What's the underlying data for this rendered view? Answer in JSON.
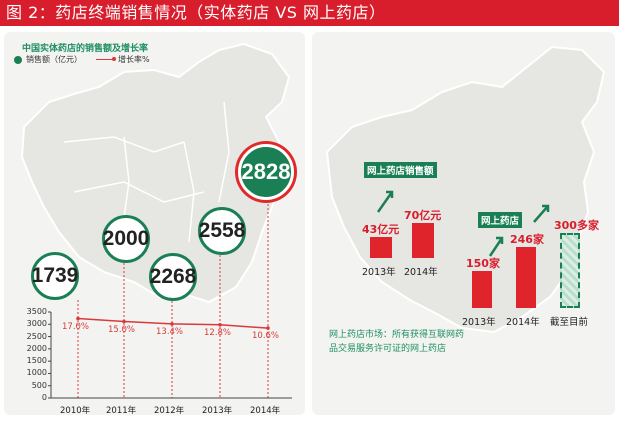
{
  "header": {
    "title": "图 2：药店终端销售情况（实体药店 VS 网上药店）"
  },
  "left_panel": {
    "chart_title": "中国实体药店的销售额及增长率",
    "legend": {
      "sales": "销售额（亿元）",
      "growth": "增长率%"
    }
  },
  "right_panel": {
    "sales_title": "网上药店销售额",
    "stores_title": "网上药店",
    "note": "网上药店市场：所有获得互联网药品交易服务许可证的网上药店"
  },
  "colors": {
    "title_red": "#d81e2c",
    "green": "#1a7f55",
    "red": "#e0242b",
    "line_red": "#d93a3a"
  },
  "chart_data": [
    {
      "type": "line",
      "title": "中国实体药店的销售额及增长率",
      "categories": [
        "2010年",
        "2011年",
        "2012年",
        "2013年",
        "2014年"
      ],
      "series": [
        {
          "name": "销售额（亿元）",
          "values": [
            1739,
            2000,
            2268,
            2558,
            2828
          ],
          "labels": [
            "1739",
            "2000",
            "2268",
            "2558",
            "2828"
          ]
        },
        {
          "name": "增长率%",
          "values": [
            17.0,
            15.0,
            13.4,
            12.8,
            10.6
          ],
          "labels": [
            "17.0%",
            "15.0%",
            "13.4%",
            "12.8%",
            "10.6%"
          ]
        }
      ],
      "y_ticks": [
        "3500",
        "3000",
        "2500",
        "2000",
        "1500",
        "1000",
        "500",
        "0"
      ],
      "ylim": [
        0,
        3500
      ]
    },
    {
      "type": "bar",
      "title": "网上药店销售额",
      "categories": [
        "2013年",
        "2014年"
      ],
      "values": [
        43,
        70
      ],
      "labels": [
        "43亿元",
        "70亿元"
      ]
    },
    {
      "type": "bar",
      "title": "网上药店",
      "categories": [
        "2013年",
        "2014年",
        "截至目前"
      ],
      "values": [
        150,
        246,
        300
      ],
      "labels": [
        "150家",
        "246家",
        "300多家"
      ]
    }
  ]
}
